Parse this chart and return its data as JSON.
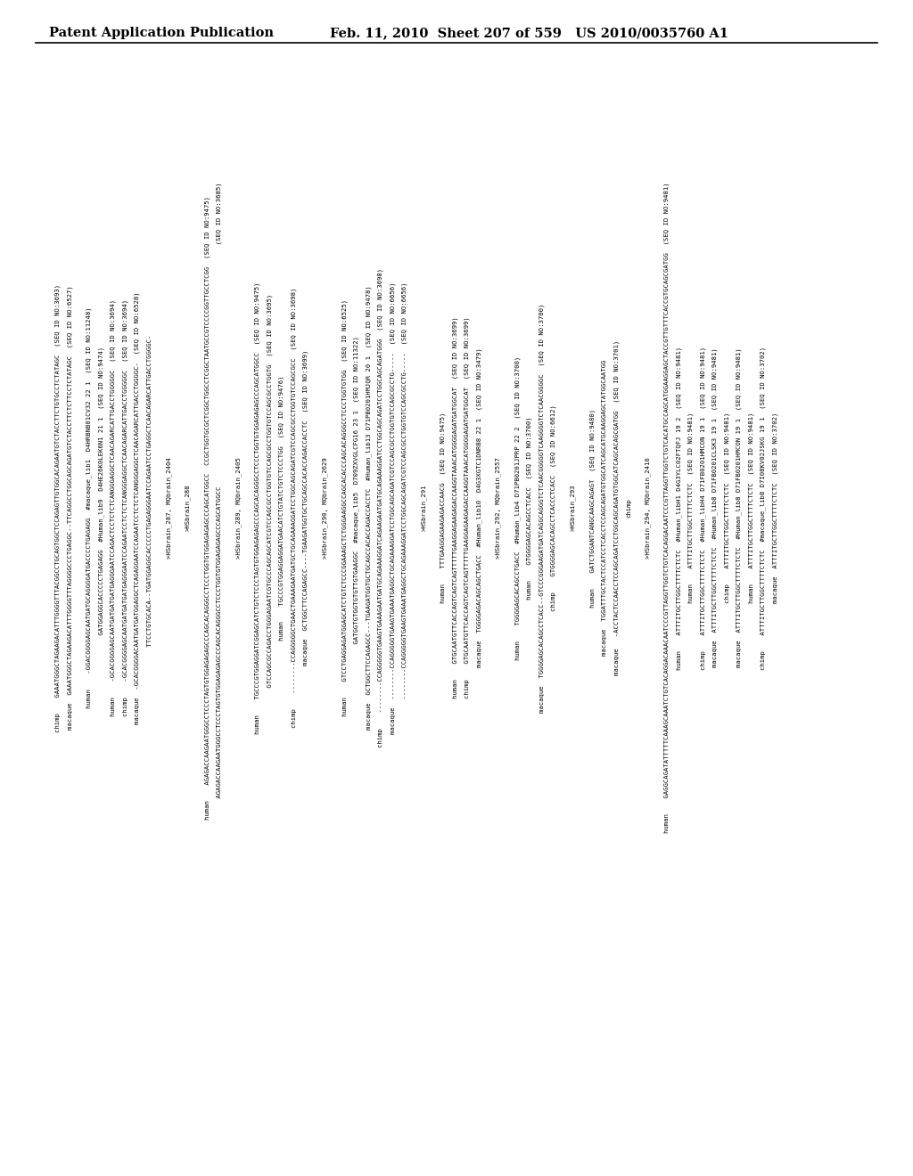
{
  "header_left": "Patent Application Publication",
  "header_right": "Feb. 11, 2010  Sheet 207 of 559   US 2010/0035760 A1",
  "background_color": "#ffffff",
  "text_color": "#000000",
  "content_lines": [
    "chimp    GAAATGGGCTAGAAGACATTTGGGGTTTACGGCCTGCAGTGGCTCCAGAGTTGTGGCACAGAATGTCTACCTTCTGTGCCTCTATAGC  (SEQ ID NO:3693)",
    "macaque  GAAATGGGCTAGAAGACATTTGGGGTTTAGGGGCCCTGAGGC--TTCAGGCCTGGCAGCAGATGTCTACCTTCTCTTCCTCTATAGC  (SEQ ID NO:6527)",
    "",
    "human    -GGACGGGGAGCAATGATGCAGGGGATGACCCCTGAGAGG  #macaque_lib1  D4HRBNB01CV32 22 1  (SEQ ID NO:11248)",
    "         GATGGAGGCACCCCCTGAGAGG  #Human_lib9  D4HE26K0LEK6N1 21 1  (SEQ ID NO:9474)",
    "human    -GCACGGGGAGCAATGATGATGATGAGGGAATCCAGACTCCTCTCTCANGGGAGGCTCAACAGARCATTGACCTGGGGGC  (SEQ ID NO:3694)",
    "chimp    -GCACGGGGAGCAATGATGATGATGAGGGAATCCAGAATCCTCTCTCANGGGAGGCTCAACAGARCATTGACCTGGGGGC  (SEQ ID NO:3694)",
    "macaque  -GCACGGGGACAATGATGATGGAGGCTCAGAGGAATCCAGAATCCTCTCTCANGGGAGGCTCAACAGARCATTGACCTGGGGC-  (SEQ ID NO:6528)",
    "         TTCCTGTGCACA--TGATGGAGGCACCCCCTGAGAGGGAATCCAGAATCCTGAGGCTCAACAGARCATTGACCTGGGGC-",
    "",
    ">HSbrain_287, MQbrain_2404",
    "",
    ">HSbrain_288",
    "",
    "human    AGAGACCAAGAATGGGCCTCCCTAGTGTGGAGAGAGCCCAGCACAGGGCCTCCCTGGTGTGGAGAGAGCCCAGCATGGCC  CCGCTGGTGCGCTCGGCTGGCCTCGGCTAATGCCGTCCCCGGTTGCCTCGG  (SEQ ID NO:9475)",
    "         AGAGACCAAGAATGGGCCTCCCTAGTGTGGAGAGAGCCCAGCACAGGGCCTCCCTGGTGTGGAGAGAGCCCAGCATGGCC                                                              (SEQ ID NO:3685)",
    "",
    ">HSbrain_289, MQbrain_2405",
    "",
    "human    TGCCCGTGGAGGATCGGAGCATCTGTCTCCCTAGTGTGGAGAGAGCCCAGCACAGGGCCTCCCTGGTGTGGAGAGAGCCCAGCATGGCC  (SEQ ID NO:9475)",
    "         GTCCAGCGCCAGACCTGGGAGAATCGTGCCCAGCAGCATCGTCCAGCGCCTGGTGTCCAGCGCCTGGTGTCCAGCGCCTGGTG  (SEQ ID NO:3695)",
    "human    TGCCCGTGGAGGAGGATGAACATCTGTATCTGTCTCCCTGG  (SEQ ID NO:9476)",
    "chimp    --------CCAGGGGGCTGAACTGAAAGAATGATGCTGCAGAAAGGATCCTGGCAGCAGATCGTCCAGCGCCTGGTGTCCAGCGCC  (SEQ ID NO:3698)",
    "macaque  GCTGGCTTCCAGAGCC----TGAAGATGGTGCTGCAGCCACACCAGACCACCTC  (SEQ ID NO:3699)",
    "",
    ">HSbrain_290, MQbrain_2629",
    "",
    "human    GTCCTGAGGAGATGGAGCATCTGTCTCCCGGAAAGCTCTGGGAAGGCCAGCACACCCAGCACAGGGCCTCCCTGGTGTGG  (SEQ ID NO:6525)",
    "         GATGGTGTGGTGTGTTGTGAAGGC  #macaque_lib5  D709ZXVGLCFG16 23 1  (SEQ ID NO:11322)",
    "macaque  GCTGGCTTCCAGAGCC---TGAAGATGGTGCTGCAGCCACACCAGACCACCTC  #Human_lib13 D71PB0201HMJQR 20 1  (SEQ ID NO:9478)",
    "chimp    --------CCAGGGGGTGAAGTGAAAGAATGATGCAGAAAGGATCAGAAGAATGATGCAGAAAGGATCCTGGCAGCAGATCCTGGCAGCAGATGGG  (SEQ ID NO:3698)",
    "macaque  --------CCAGGGGGTGAAGTGAAATGAGGCTGCAGAAAGGATCCTGGCAGCAGATCGTCCAGCGCCTGGTGTCCAGCGCCTG-----  (SEQ ID NO:6656)",
    "         --------CCAGGGGGTGAAGTGAAATGAGGCTGCAGAAAGGATCCTGGCAGCAGATCGTCCAGCGCCTGGTGTCCAGCGCCTG-----  (SEQ ID NO:6656)",
    "",
    ">HSbrain_291",
    "",
    "human    TTTGAAGGAGAAGAGACCAACG  (SEQ ID NO:9475)",
    "human    GTGCAATGTTCACCAGTCAGTCAGTTTTTGAAGGAGAAGAGACCAAGGTAAACATGGGGAGATGATGGCAT  (SEQ ID NO:3699)",
    "chimp    GTGCAATGTTCACCAGTCAGTCAGTTTTTGAAGGAGAAGAGACCAAGGTAAACATGGGGAGATGATGGCAT  (SEQ ID NO:3699)",
    "macaque  TGGGGAGACAGCAGCTGACC  #Human_lib10  D4G3XGTC1DNR88 22 1  (SEQ ID NO:3479)",
    "",
    ">HSbrain_292, MQbrain_2557",
    "",
    "human    TGGGGAGCACAGCCTGACC  #Human_lib4 D71PB0201JPRP 22 2  (SEQ ID NO:3700)",
    "human    GTGGGGAGCACAGCCTCACC  (SEQ ID NO:3700)",
    "macaque  TGGGGAGCACAGCCTCACC--GTCCCGGGAAGATGATCAGGCAGGGTCTCAACGGGGGTCAAGGGGTCTCAACGGGGC  (SEQ ID NO:3700)",
    "chimp    GTGGGGAGCACAGCCTCACCCTCACC  (SEQ ID NO:6612)",
    "",
    ">HSbrain_293",
    "",
    "human    GATCTGGANTCANGCAAGCAGAGT  (SEQ ID NO:9480)",
    "macaque  TGGATTTGCTACTCCATCCTCACCTCCAGCAGATGTGGCATCAGCATGCAAGGAGCTATGGCAATGG",
    "macaque   -ACCTACTCCAACCTCCAGCAGATCCTGGCAGCAGATGTGGCATCAGCACAGCGATGG  (SEQ ID NO:3701)",
    "chimp",
    "",
    ">HSbrain_294, MQbrain_2410",
    "",
    "human    GAGGCAGATATTTTTCAAAGCAAATCTGTCACAGGACAAACAATCCCGTTAGGTTGGTCTGTCACAGGACAATCCCGTTAGGTTGGTCTGTCACATGCCAGCATGGAAGGAGCTACCGTTGTTTCACCGTGCAGCGATGG  (SEQ ID NO:9481)",
    "human    ATTTITGCTTGGCTTTTCTCTC  #Human_libH1 D4G3YLC02FTQFJ 19 2  (SEQ ID NO:9481)",
    "human    ATTTITGCTTGGCTTTTCTCTC  (SEQ ID NO:9481)",
    "chimp    ATTTITGCTTGGCTTTTCTCTC  #Human_libH4 D71FB0201HMCON 19 1  (SEQ ID NO:9481)",
    "macaque  ATTTITGCTTGGCTTTTCTCTC  #Human_lib8 D71FB0201CLSK3 19 1  (SEQ ID NO:9481)",
    "chimp    ATTTITGCTTGGCTTTTCTCTC  (SEQ ID NO:9481)",
    "macaque  ATTTITGCTTGGCTTTTCTCTC  #Human_lib8 D71FB0201HMCON 19 1  (SEQ ID NO:9481)",
    "human    ATTTITGCTTGGCTTTTCTCTC  (SEQ ID NO:9481)",
    "chimp    ATTTITGCTTGGCTTTTCTCTC  #macaque_lib8 D7I08KV02JSKG 19 1  (SEQ ID NO:3702)",
    "macaque  ATTTITGCTTGGCTTTTCTCTC  (SEQ ID NO:3702)"
  ]
}
